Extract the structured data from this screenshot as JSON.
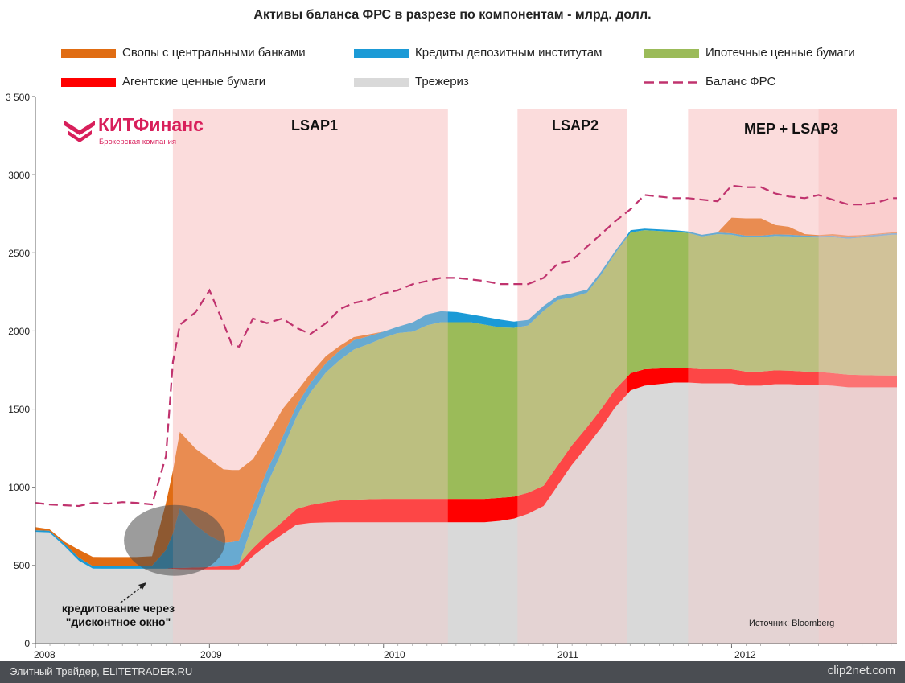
{
  "chart_data": {
    "type": "area",
    "title": "Активы баланса ФРС в разрезе по компонентам - млрд. долл.",
    "ylim": [
      0,
      3500
    ],
    "yticks": [
      0,
      500,
      1000,
      1500,
      2000,
      2500,
      3000,
      3500
    ],
    "ytick_labels": [
      "0",
      "500",
      "1000",
      "1500",
      "2000",
      "2500",
      "3000",
      "3 500"
    ],
    "xlim": [
      2008.0,
      2012.95
    ],
    "xticks": [
      2008,
      2009,
      2010,
      2011,
      2012
    ],
    "xtick_labels": [
      "2008",
      "2009",
      "2010",
      "2011",
      "2012"
    ],
    "x": [
      2008.0,
      2008.08,
      2008.17,
      2008.25,
      2008.33,
      2008.42,
      2008.5,
      2008.58,
      2008.67,
      2008.75,
      2008.79,
      2008.83,
      2008.92,
      2009.0,
      2009.08,
      2009.13,
      2009.17,
      2009.25,
      2009.33,
      2009.42,
      2009.5,
      2009.58,
      2009.67,
      2009.75,
      2009.83,
      2009.92,
      2010.0,
      2010.08,
      2010.17,
      2010.25,
      2010.33,
      2010.42,
      2010.5,
      2010.58,
      2010.67,
      2010.75,
      2010.83,
      2010.92,
      2011.0,
      2011.08,
      2011.17,
      2011.25,
      2011.33,
      2011.42,
      2011.5,
      2011.58,
      2011.67,
      2011.75,
      2011.83,
      2011.92,
      2012.0,
      2012.08,
      2012.17,
      2012.25,
      2012.33,
      2012.42,
      2012.5,
      2012.58,
      2012.67,
      2012.75,
      2012.83,
      2012.92,
      2012.95
    ],
    "series": [
      {
        "name": "Трежериз",
        "values": [
          715,
          712,
          620,
          530,
          480,
          479,
          479,
          479,
          479,
          479,
          479,
          476,
          475,
          475,
          475,
          475,
          475,
          560,
          630,
          700,
          760,
          772,
          775,
          776,
          776,
          776,
          776,
          776,
          776,
          776,
          776,
          776,
          776,
          776,
          785,
          800,
          830,
          880,
          1010,
          1140,
          1265,
          1380,
          1510,
          1620,
          1650,
          1660,
          1670,
          1670,
          1665,
          1665,
          1665,
          1650,
          1650,
          1660,
          1660,
          1655,
          1655,
          1650,
          1640,
          1640,
          1640,
          1640,
          1640
        ]
      },
      {
        "name": "Агентские ценные бумаги",
        "values": [
          0,
          0,
          0,
          0,
          0,
          0,
          0,
          0,
          0,
          0,
          5,
          8,
          12,
          15,
          20,
          25,
          35,
          50,
          65,
          80,
          100,
          115,
          130,
          140,
          145,
          148,
          150,
          150,
          150,
          150,
          150,
          150,
          150,
          150,
          148,
          140,
          135,
          130,
          128,
          125,
          120,
          120,
          115,
          110,
          105,
          100,
          95,
          92,
          90,
          90,
          90,
          90,
          90,
          88,
          86,
          85,
          83,
          80,
          80,
          78,
          76,
          75,
          75
        ]
      },
      {
        "name": "Ипотечные ценные бумаги",
        "values": [
          0,
          0,
          0,
          0,
          0,
          0,
          0,
          0,
          0,
          0,
          0,
          0,
          0,
          0,
          0,
          0,
          0,
          160,
          320,
          460,
          590,
          720,
          830,
          900,
          960,
          995,
          1030,
          1060,
          1070,
          1110,
          1130,
          1130,
          1130,
          1115,
          1090,
          1080,
          1070,
          1120,
          1060,
          950,
          860,
          860,
          870,
          900,
          890,
          880,
          870,
          865,
          850,
          865,
          860,
          860,
          860,
          860,
          860,
          860,
          860,
          870,
          870,
          880,
          890,
          900,
          900
        ]
      },
      {
        "name": "Кредиты депозитным институтам",
        "values": [
          10,
          10,
          15,
          20,
          15,
          15,
          15,
          15,
          20,
          120,
          220,
          380,
          270,
          200,
          150,
          150,
          150,
          110,
          90,
          80,
          70,
          60,
          60,
          60,
          60,
          50,
          40,
          40,
          60,
          70,
          70,
          65,
          50,
          50,
          50,
          40,
          35,
          30,
          25,
          25,
          20,
          20,
          15,
          15,
          10,
          10,
          10,
          10,
          10,
          10,
          10,
          10,
          10,
          10,
          10,
          10,
          10,
          10,
          10,
          10,
          10,
          10,
          10
        ]
      },
      {
        "name": "Свопы с центральными банками",
        "values": [
          20,
          10,
          15,
          50,
          60,
          60,
          60,
          60,
          60,
          300,
          400,
          490,
          490,
          490,
          470,
          460,
          450,
          300,
          220,
          180,
          90,
          60,
          45,
          30,
          20,
          10,
          0,
          0,
          0,
          0,
          0,
          0,
          0,
          0,
          0,
          0,
          0,
          0,
          0,
          0,
          0,
          0,
          0,
          0,
          0,
          0,
          0,
          0,
          0,
          0,
          100,
          110,
          110,
          60,
          50,
          10,
          5,
          10,
          10,
          5,
          5,
          5,
          5
        ]
      },
      {
        "name": "Баланс ФРС",
        "values": [
          900,
          890,
          885,
          880,
          900,
          895,
          905,
          900,
          890,
          1200,
          1800,
          2040,
          2120,
          2260,
          2050,
          1910,
          1900,
          2080,
          2050,
          2080,
          2020,
          1980,
          2050,
          2140,
          2180,
          2200,
          2240,
          2260,
          2300,
          2320,
          2340,
          2340,
          2330,
          2320,
          2300,
          2300,
          2300,
          2340,
          2430,
          2450,
          2540,
          2620,
          2700,
          2780,
          2870,
          2860,
          2850,
          2850,
          2840,
          2830,
          2930,
          2920,
          2920,
          2880,
          2860,
          2850,
          2870,
          2840,
          2810,
          2810,
          2820,
          2850,
          2850
        ]
      }
    ],
    "shaded_periods": [
      {
        "label": "LSAP1",
        "start": 2008.79,
        "end": 2010.37
      },
      {
        "label": "LSAP2",
        "start": 2010.77,
        "end": 2011.4
      },
      {
        "label": "MEP + LSAP3",
        "start": 2011.75,
        "end": 2012.95
      },
      {
        "label": "",
        "start": 2012.5,
        "end": 2012.95
      }
    ],
    "annotation": "кредитование через \"дисконтное окно\"",
    "source": "Источник: Bloomberg"
  },
  "colors": {
    "Свопы с центральными банками": "#e06c12",
    "Кредиты депозитным институтам": "#1b9ad6",
    "Ипотечные ценные бумаги": "#9bbb59",
    "Агентские ценные бумаги": "#ff0000",
    "Трежериз": "#d9d9d9",
    "Баланс ФРС": "#c0336e",
    "shade": "#f8c8c8",
    "logo": "#d81f5b"
  },
  "logo": {
    "name": "КИТФинанс",
    "subtitle": "Брокерская компания"
  },
  "footer": {
    "left": "Элитный Трейдер, ELITETRADER.RU",
    "right": "clip2net.com"
  }
}
